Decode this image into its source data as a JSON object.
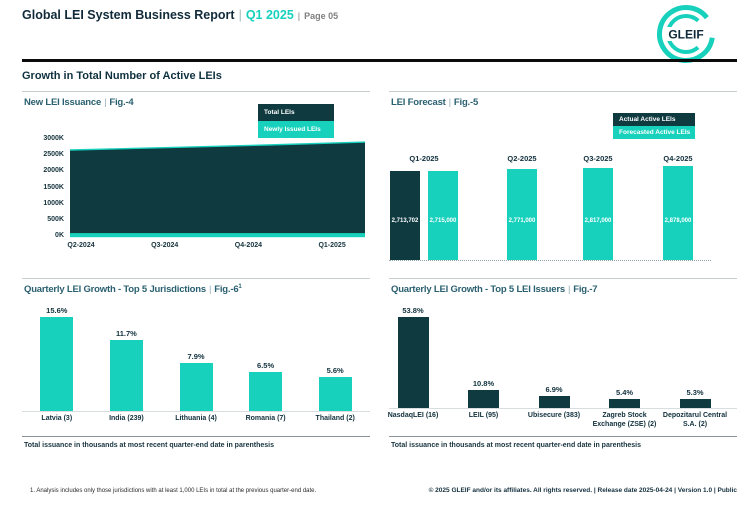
{
  "ui": {
    "pipe": "|"
  },
  "colors": {
    "teal": "#17D1BD",
    "dark": "#0E3A40",
    "navy": "#102A3A",
    "panel_title": "#2A6070",
    "gray": "#7F7F7F"
  },
  "header": {
    "title": "Global LEI System Business Report",
    "period": "Q1 2025",
    "page": "Page 05",
    "logo_text": "GLEIF",
    "section_title": "Growth in Total Number of Active LEIs"
  },
  "footer": {
    "footnote": "1. Analysis includes only those jurisdictions with at least 1,000 LEIs in total at the previous quarter-end date.",
    "copyright": "© 2025 GLEIF and/or its affiliates. All rights reserved. | Release date 2025-04-24 | Version 1.0 | Public"
  },
  "chart_data": [
    {
      "id": "fig4",
      "type": "area",
      "title": "New LEI Issuance",
      "fig": "Fig.-4",
      "legend": [
        {
          "label": "Total LEIs",
          "color_key": "dark"
        },
        {
          "label": "Newly Issued LEIs",
          "color_key": "teal"
        }
      ],
      "x": [
        "Q2-2024",
        "Q3-2024",
        "Q4-2024",
        "Q1-2025"
      ],
      "y_ticks": [
        "3000K",
        "2500K",
        "2000K",
        "1500K",
        "1000K",
        "500K",
        "0K"
      ],
      "ylim_k": [
        0,
        3000
      ],
      "series": [
        {
          "name": "Total LEIs",
          "color_key": "dark",
          "values_k": [
            2660,
            2735,
            2815,
            2905
          ]
        },
        {
          "name": "Newly Issued LEIs",
          "color_key": "teal",
          "values_k": [
            90,
            90,
            90,
            90
          ]
        }
      ]
    },
    {
      "id": "fig5",
      "type": "bar",
      "title": "LEI Forecast",
      "fig": "Fig.-5",
      "legend": [
        {
          "label": "Actual Active LEIs",
          "color_key": "dark"
        },
        {
          "label": "Forecasted Active LEIs",
          "color_key": "teal"
        }
      ],
      "groups": [
        {
          "category": "Q1-2025",
          "bars": [
            {
              "series": "Actual Active LEIs",
              "color_key": "dark",
              "value": 2713702,
              "label": "2,713,702"
            },
            {
              "series": "Forecasted Active LEIs",
              "color_key": "teal",
              "value": 2715000,
              "label": "2,715,000"
            }
          ]
        },
        {
          "category": "Q2-2025",
          "bars": [
            {
              "series": "Forecasted Active LEIs",
              "color_key": "teal",
              "value": 2771000,
              "label": "2,771,000"
            }
          ]
        },
        {
          "category": "Q3-2025",
          "bars": [
            {
              "series": "Forecasted Active LEIs",
              "color_key": "teal",
              "value": 2817000,
              "label": "2,817,000"
            }
          ]
        },
        {
          "category": "Q4-2025",
          "bars": [
            {
              "series": "Forecasted Active LEIs",
              "color_key": "teal",
              "value": 2878000,
              "label": "2,878,000"
            }
          ]
        }
      ]
    },
    {
      "id": "fig6",
      "type": "bar",
      "title": "Quarterly LEI Growth - Top 5 Jurisdictions",
      "fig": "Fig.-6",
      "fig_sup": "1",
      "color_key": "teal",
      "categories": [
        "Latvia (3)",
        "India (239)",
        "Lithuania (4)",
        "Romania (7)",
        "Thailand (2)"
      ],
      "values_pct": [
        15.6,
        11.7,
        7.9,
        6.5,
        5.6
      ],
      "labels": [
        "15.6%",
        "11.7%",
        "7.9%",
        "6.5%",
        "5.6%"
      ],
      "caption": "Total issuance in thousands at most recent quarter-end date in parenthesis"
    },
    {
      "id": "fig7",
      "type": "bar",
      "title": "Quarterly LEI Growth - Top 5 LEI Issuers",
      "fig": "Fig.-7",
      "color_key": "dark",
      "categories": [
        "NasdaqLEI (16)",
        "LEIL (95)",
        "Ubisecure (383)",
        "Zagreb Stock Exchange (ZSE) (2)",
        "Depozitarul Central S.A. (2)"
      ],
      "values_pct": [
        53.8,
        10.8,
        6.9,
        5.4,
        5.3
      ],
      "labels": [
        "53.8%",
        "10.8%",
        "6.9%",
        "5.4%",
        "5.3%"
      ],
      "caption": "Total issuance in thousands at most recent quarter-end date in parenthesis"
    }
  ]
}
